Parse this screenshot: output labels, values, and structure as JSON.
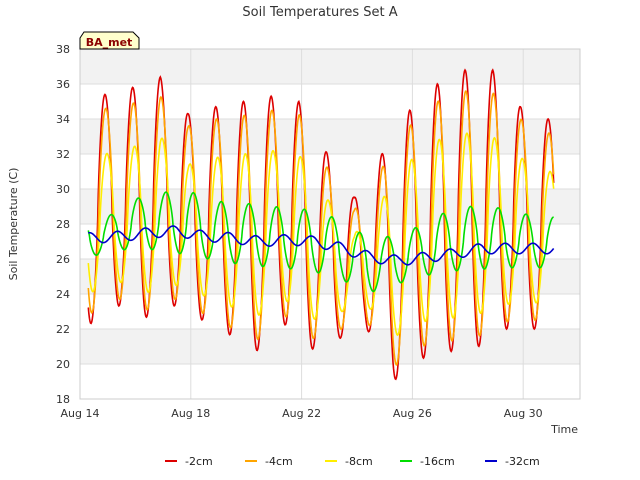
{
  "chart_data": {
    "type": "line",
    "title": "Soil Temperatures Set A",
    "xlabel": "Time",
    "ylabel": "Soil Temperature (C)",
    "badge": "BA_met",
    "x_ticks": [
      "Aug 14",
      "Aug 18",
      "Aug 22",
      "Aug 26",
      "Aug 30"
    ],
    "y_ticks": [
      18,
      20,
      22,
      24,
      26,
      28,
      30,
      32,
      34,
      36,
      38
    ],
    "ylim": [
      18,
      38
    ],
    "xlim_days": [
      "Aug 14",
      "Aug 31 12:00"
    ],
    "grid": true,
    "legend_position": "bottom",
    "colors": {
      "bands": "#f2f2f2",
      "grid": "#dddddd"
    },
    "series": [
      {
        "name": "-2cm",
        "color": "#dd0000",
        "peaks": [
          35.4,
          35.8,
          36.4,
          34.3,
          34.7,
          35.0,
          35.3,
          35.0,
          32.1,
          29.5,
          32.0,
          34.5,
          36.0,
          36.8,
          36.8,
          34.7,
          34.0
        ],
        "troughs": [
          22.2,
          23.4,
          22.6,
          23.4,
          22.6,
          21.8,
          20.6,
          22.4,
          20.8,
          21.4,
          22.2,
          19.0,
          20.3,
          20.7,
          20.9,
          22.0,
          22.0
        ]
      },
      {
        "name": "-4cm",
        "color": "#ffa500",
        "peaks": [
          34.6,
          34.9,
          35.3,
          33.6,
          34.0,
          34.2,
          34.5,
          34.3,
          31.3,
          28.8,
          31.2,
          33.6,
          35.0,
          35.6,
          35.5,
          34.0,
          33.2
        ],
        "troughs": [
          22.8,
          23.8,
          23.0,
          23.8,
          23.0,
          22.2,
          21.2,
          22.9,
          21.4,
          21.9,
          22.6,
          19.8,
          21.0,
          21.3,
          21.5,
          22.4,
          22.5
        ]
      },
      {
        "name": "-8cm",
        "color": "#ffee00",
        "peaks": [
          32.0,
          32.4,
          33.0,
          31.4,
          31.8,
          32.0,
          32.2,
          32.0,
          29.5,
          27.4,
          29.4,
          31.6,
          32.8,
          33.2,
          33.0,
          31.8,
          31.0
        ],
        "troughs": [
          24.0,
          24.8,
          24.0,
          24.6,
          24.0,
          23.4,
          22.6,
          23.8,
          22.5,
          22.9,
          23.5,
          21.5,
          22.4,
          22.6,
          22.8,
          23.4,
          23.5
        ]
      },
      {
        "name": "-16cm",
        "color": "#00dd00",
        "peaks": [
          28.3,
          29.4,
          29.8,
          29.9,
          29.3,
          29.2,
          29.0,
          28.9,
          28.6,
          27.6,
          27.2,
          27.6,
          28.5,
          29.0,
          29.0,
          28.6,
          28.4
        ],
        "troughs": [
          26.1,
          26.5,
          26.6,
          26.4,
          26.1,
          25.8,
          25.6,
          25.5,
          25.3,
          25.0,
          24.0,
          24.5,
          25.0,
          25.3,
          25.4,
          25.5,
          25.5
        ]
      },
      {
        "name": "-32cm",
        "color": "#0000cc",
        "start": 27.3,
        "daily_mean": [
          27.2,
          27.3,
          27.5,
          27.6,
          27.3,
          27.2,
          27.0,
          27.1,
          27.0,
          26.6,
          26.1,
          25.9,
          26.1,
          26.3,
          26.6,
          26.6,
          26.6
        ],
        "amplitude": 0.3
      }
    ]
  }
}
